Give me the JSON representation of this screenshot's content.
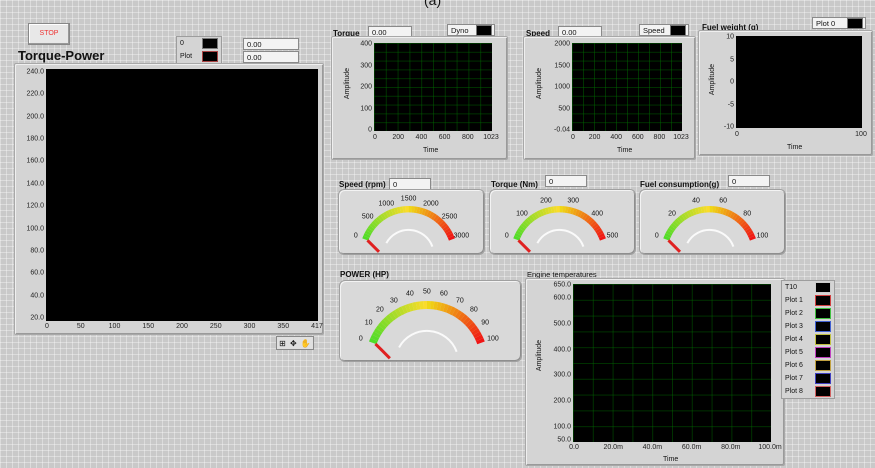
{
  "top_label": "(a)",
  "stop_button": {
    "label": "STOP"
  },
  "torque_power": {
    "title": "Torque-Power",
    "legend": [
      {
        "name": "0"
      },
      {
        "name": "Plot"
      }
    ],
    "readout_1": "0.00",
    "readout_2": "0.00",
    "y_ticks": [
      "240.0",
      "220.0",
      "200.0",
      "180.0",
      "160.0",
      "140.0",
      "120.0",
      "100.0",
      "80.0",
      "60.0",
      "40.0",
      "20.0"
    ],
    "x_ticks": [
      "0",
      "50",
      "100",
      "150",
      "200",
      "250",
      "300",
      "350",
      "417"
    ]
  },
  "torque_chart": {
    "label": "Torque",
    "value": "0.00",
    "legend": "Dyno",
    "y_ticks": [
      "400",
      "300",
      "200",
      "100",
      "0"
    ],
    "x_ticks": [
      "0",
      "200",
      "400",
      "600",
      "800",
      "1023"
    ],
    "ylabel": "Amplitude",
    "xlabel": "Time"
  },
  "speed_chart": {
    "label": "Speed",
    "value": "0.00",
    "legend": "Speed",
    "y_ticks": [
      "2000",
      "1500",
      "1000",
      "500",
      "-0.04"
    ],
    "x_ticks": [
      "0",
      "200",
      "400",
      "600",
      "800",
      "1023"
    ],
    "ylabel": "Amplitude",
    "xlabel": "Time"
  },
  "fuel_weight_chart": {
    "label": "Fuel weight (g)",
    "legend": "Plot 0",
    "y_ticks": [
      "10",
      "5",
      "0",
      "-5",
      "-10"
    ],
    "x_ticks": [
      "0",
      "100"
    ],
    "ylabel": "Amplitude",
    "xlabel": "Time"
  },
  "speed_gauge": {
    "label": "Speed (rpm)",
    "value": "0",
    "ticks": [
      "0",
      "500",
      "1000",
      "1500",
      "2000",
      "2500",
      "3000"
    ],
    "reading": 0,
    "max": 3000
  },
  "torque_gauge": {
    "label": "Torque (Nm)",
    "value": "0",
    "ticks": [
      "0",
      "100",
      "200",
      "300",
      "400",
      "500"
    ],
    "reading": 0,
    "max": 500
  },
  "fuel_gauge": {
    "label": "Fuel consumption(g)",
    "value": "0",
    "ticks": [
      "0",
      "20",
      "40",
      "60",
      "80",
      "100"
    ],
    "reading": 0,
    "max": 100
  },
  "power_gauge": {
    "label": "POWER (HP)",
    "ticks": [
      "0",
      "10",
      "20",
      "30",
      "40",
      "50",
      "60",
      "70",
      "80",
      "90",
      "100"
    ],
    "reading": 0,
    "max": 100
  },
  "engine_temps": {
    "title": "Engine temperatures",
    "ylabel": "Amplitude",
    "xlabel": "Time",
    "y_ticks": [
      "650.0",
      "600.0",
      "500.0",
      "400.0",
      "300.0",
      "200.0",
      "100.0",
      "50.0"
    ],
    "x_ticks": [
      "0.0",
      "20.0m",
      "40.0m",
      "60.0m",
      "80.0m",
      "100.0m"
    ],
    "legend": [
      "T10",
      "Plot 1",
      "Plot 2",
      "Plot 3",
      "Plot 4",
      "Plot 5",
      "Plot 6",
      "Plot 7",
      "Plot 8"
    ],
    "legend_colors": [
      "#cccccc",
      "#d04040",
      "#40c040",
      "#4060d0",
      "#c0c040",
      "#c040c0",
      "#c0a040",
      "#4040c0",
      "#d06060"
    ]
  },
  "toolbar": {
    "icons": [
      "zoom-icon",
      "pan-icon",
      "cursor-icon"
    ]
  }
}
